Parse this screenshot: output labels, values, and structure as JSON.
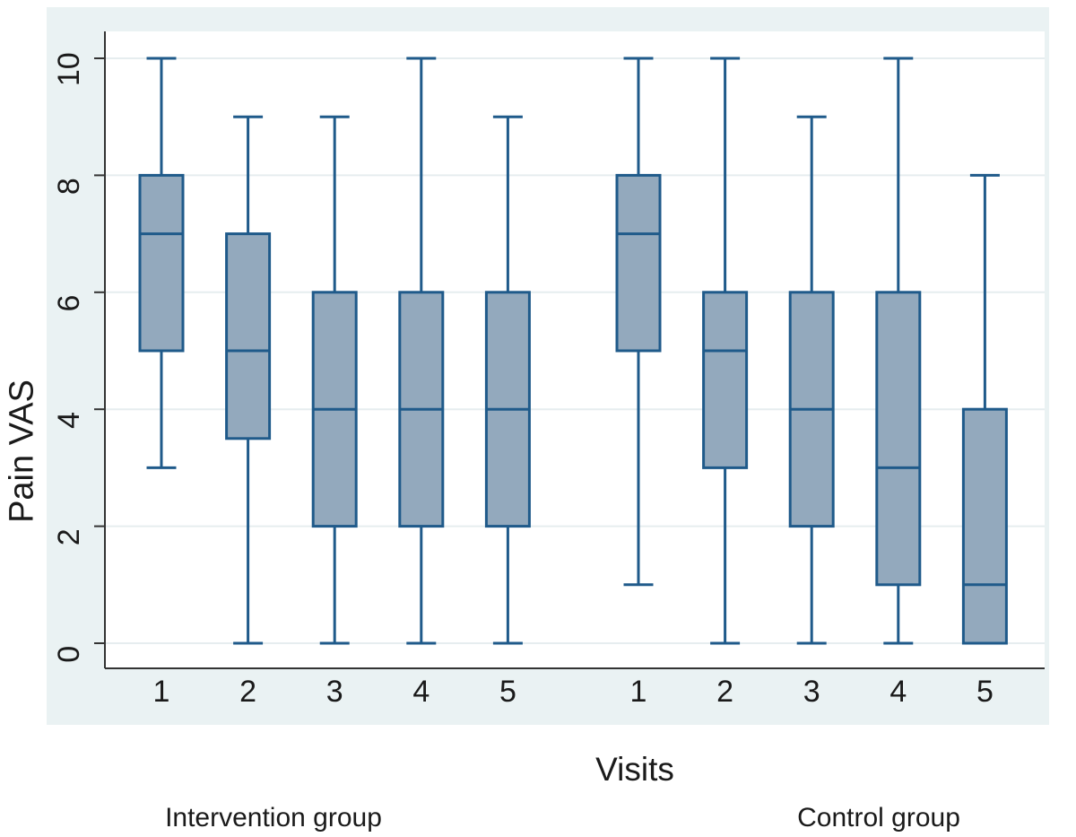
{
  "figure": {
    "background_color": "#eaf2f3",
    "plot_background": "#ffffff",
    "grid_color": "#e6edef",
    "axis_color": "#333333",
    "text_color": "#1a1a1a",
    "box_fill": "#93a9bd",
    "box_stroke": "#1f5a8a"
  },
  "chart_data": {
    "type": "boxplot",
    "title": "",
    "xlabel": "Visits",
    "ylabel": "Pain VAS",
    "ylim": [
      0,
      10
    ],
    "yticks": [
      "0",
      "2",
      "4",
      "6",
      "8",
      "10"
    ],
    "ytick_values": [
      0,
      2,
      4,
      6,
      8,
      10
    ],
    "grid": true,
    "legend_position": "none",
    "groups": [
      {
        "label": "Intervention group",
        "boxes": [
          {
            "visit": "1",
            "whisker_low": 3,
            "q1": 5,
            "median": 7,
            "q3": 8,
            "whisker_high": 10
          },
          {
            "visit": "2",
            "whisker_low": 0,
            "q1": 3.5,
            "median": 5,
            "q3": 7,
            "whisker_high": 9
          },
          {
            "visit": "3",
            "whisker_low": 0,
            "q1": 2,
            "median": 4,
            "q3": 6,
            "whisker_high": 9
          },
          {
            "visit": "4",
            "whisker_low": 0,
            "q1": 2,
            "median": 4,
            "q3": 6,
            "whisker_high": 10
          },
          {
            "visit": "5",
            "whisker_low": 0,
            "q1": 2,
            "median": 4,
            "q3": 6,
            "whisker_high": 9
          }
        ]
      },
      {
        "label": "Control group",
        "boxes": [
          {
            "visit": "1",
            "whisker_low": 1,
            "q1": 5,
            "median": 7,
            "q3": 8,
            "whisker_high": 10
          },
          {
            "visit": "2",
            "whisker_low": 0,
            "q1": 3,
            "median": 5,
            "q3": 6,
            "whisker_high": 10
          },
          {
            "visit": "3",
            "whisker_low": 0,
            "q1": 2,
            "median": 4,
            "q3": 6,
            "whisker_high": 9
          },
          {
            "visit": "4",
            "whisker_low": 0,
            "q1": 1,
            "median": 3,
            "q3": 6,
            "whisker_high": 10
          },
          {
            "visit": "5",
            "whisker_low": 0,
            "q1": 0,
            "median": 1,
            "q3": 4,
            "whisker_high": 8
          }
        ]
      }
    ]
  }
}
